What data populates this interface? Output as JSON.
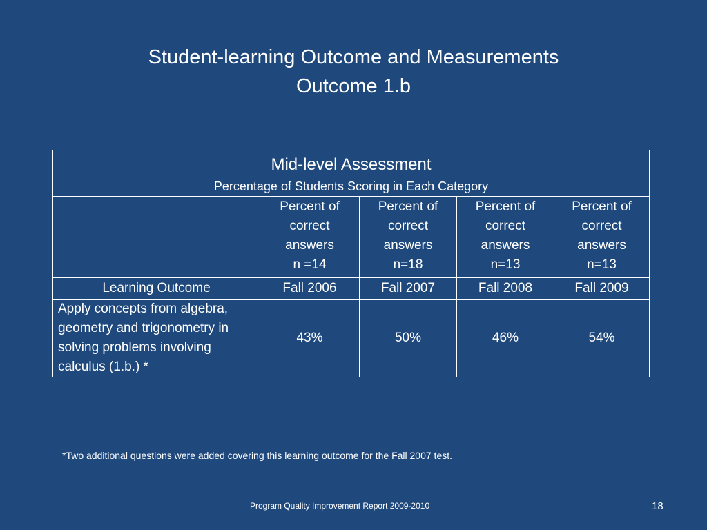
{
  "slide": {
    "title_line1": "Student-learning Outcome and Measurements",
    "title_line2": "Outcome 1.b"
  },
  "table": {
    "heading": "Mid-level Assessment",
    "subheading": "Percentage of Students Scoring in Each Category",
    "columns": [
      {
        "line1": "Percent of",
        "line2": "correct",
        "line3": "answers",
        "n": "n =14",
        "term": "Fall 2006",
        "value": "43%"
      },
      {
        "line1": "Percent of",
        "line2": "correct",
        "line3": "answers",
        "n": "n=18",
        "term": "Fall 2007",
        "value": "50%"
      },
      {
        "line1": "Percent of",
        "line2": "correct",
        "line3": "answers",
        "n": "n=13",
        "term": "Fall 2008",
        "value": "46%"
      },
      {
        "line1": "Percent of",
        "line2": "correct",
        "line3": "answers",
        "n": "n=13",
        "term": "Fall 2009",
        "value": "54%"
      }
    ],
    "row_header": "Learning Outcome",
    "outcome": "Apply concepts from algebra, geometry and trigonometry in solving problems involving calculus (1.b.) *"
  },
  "footnote": "*Two additional questions were added covering this learning outcome for the Fall 2007 test.",
  "footer": "Program Quality Improvement Report 2009-2010",
  "page_number": "18"
}
